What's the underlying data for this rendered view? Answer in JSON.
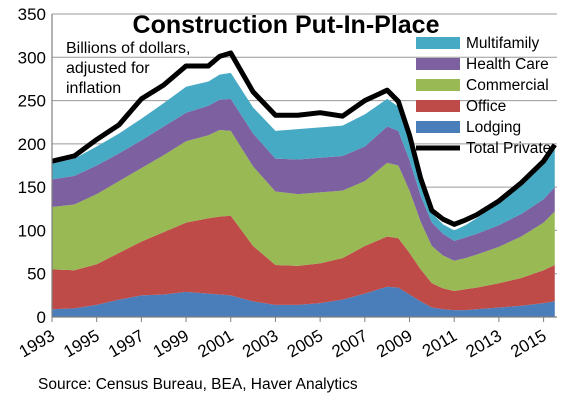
{
  "chart_data": {
    "type": "area",
    "title": "Construction Put-In-Place",
    "annotation": [
      "Billions of dollars,",
      "adjusted  for",
      "inflation"
    ],
    "source": "Source: Census Bureau, BEA, Haver Analytics",
    "ylim": [
      0,
      350
    ],
    "yticks": [
      "0",
      "50",
      "100",
      "150",
      "200",
      "250",
      "300",
      "350"
    ],
    "xlim": [
      1993,
      2015.6
    ],
    "xticks": [
      "1993",
      "1995",
      "1997",
      "1999",
      "2001",
      "2003",
      "2005",
      "2007",
      "2009",
      "2011",
      "2013",
      "2015"
    ],
    "grid": true,
    "legend_position": "top-right",
    "x": [
      1993.0,
      1994.0,
      1995.0,
      1996.0,
      1997.0,
      1998.0,
      1999.0,
      2000.0,
      2000.5,
      2001.0,
      2002.0,
      2003.0,
      2004.0,
      2005.0,
      2006.0,
      2007.0,
      2008.0,
      2008.5,
      2009.0,
      2009.5,
      2010.0,
      2010.5,
      2011.0,
      2011.5,
      2012.0,
      2013.0,
      2014.0,
      2015.0,
      2015.5
    ],
    "series": [
      {
        "name": "Lodging",
        "color": "#4a7ebb",
        "values": [
          9,
          10,
          14,
          20,
          25,
          26,
          29,
          27,
          26,
          25,
          18,
          14,
          14,
          16,
          20,
          27,
          35,
          34,
          26,
          18,
          11,
          9,
          8,
          8,
          9,
          11,
          13,
          16,
          18
        ]
      },
      {
        "name": "Office",
        "color": "#be4b48",
        "values": [
          46,
          44,
          47,
          54,
          62,
          72,
          80,
          87,
          90,
          92,
          64,
          46,
          45,
          46,
          48,
          55,
          58,
          57,
          48,
          37,
          28,
          24,
          22,
          24,
          25,
          28,
          32,
          38,
          42
        ]
      },
      {
        "name": "Commercial",
        "color": "#98b954",
        "values": [
          72,
          76,
          81,
          83,
          85,
          89,
          94,
          96,
          100,
          98,
          92,
          85,
          83,
          82,
          78,
          75,
          85,
          84,
          72,
          55,
          43,
          38,
          35,
          36,
          38,
          42,
          48,
          55,
          62
        ]
      },
      {
        "name": "Health Care",
        "color": "#7d60a0",
        "values": [
          32,
          33,
          33,
          32,
          32,
          33,
          33,
          34,
          35,
          37,
          38,
          38,
          40,
          40,
          40,
          40,
          42,
          40,
          35,
          30,
          27,
          25,
          23,
          24,
          24,
          25,
          26,
          27,
          28
        ]
      },
      {
        "name": "Multifamily",
        "color": "#46aac5",
        "values": [
          18,
          20,
          22,
          23,
          25,
          27,
          30,
          28,
          29,
          30,
          30,
          32,
          35,
          35,
          35,
          37,
          32,
          28,
          20,
          14,
          11,
          11,
          12,
          14,
          18,
          26,
          33,
          40,
          45
        ]
      }
    ],
    "line": {
      "name": "Total Private",
      "color": "#000000",
      "values": [
        180,
        186,
        205,
        222,
        252,
        268,
        290,
        290,
        301,
        305,
        260,
        233,
        233,
        236,
        232,
        250,
        262,
        249,
        210,
        160,
        123,
        113,
        107,
        112,
        118,
        134,
        155,
        180,
        199
      ]
    },
    "legend_order": [
      "Multifamily",
      "Health Care",
      "Commercial",
      "Office",
      "Lodging",
      "Total Private"
    ]
  }
}
